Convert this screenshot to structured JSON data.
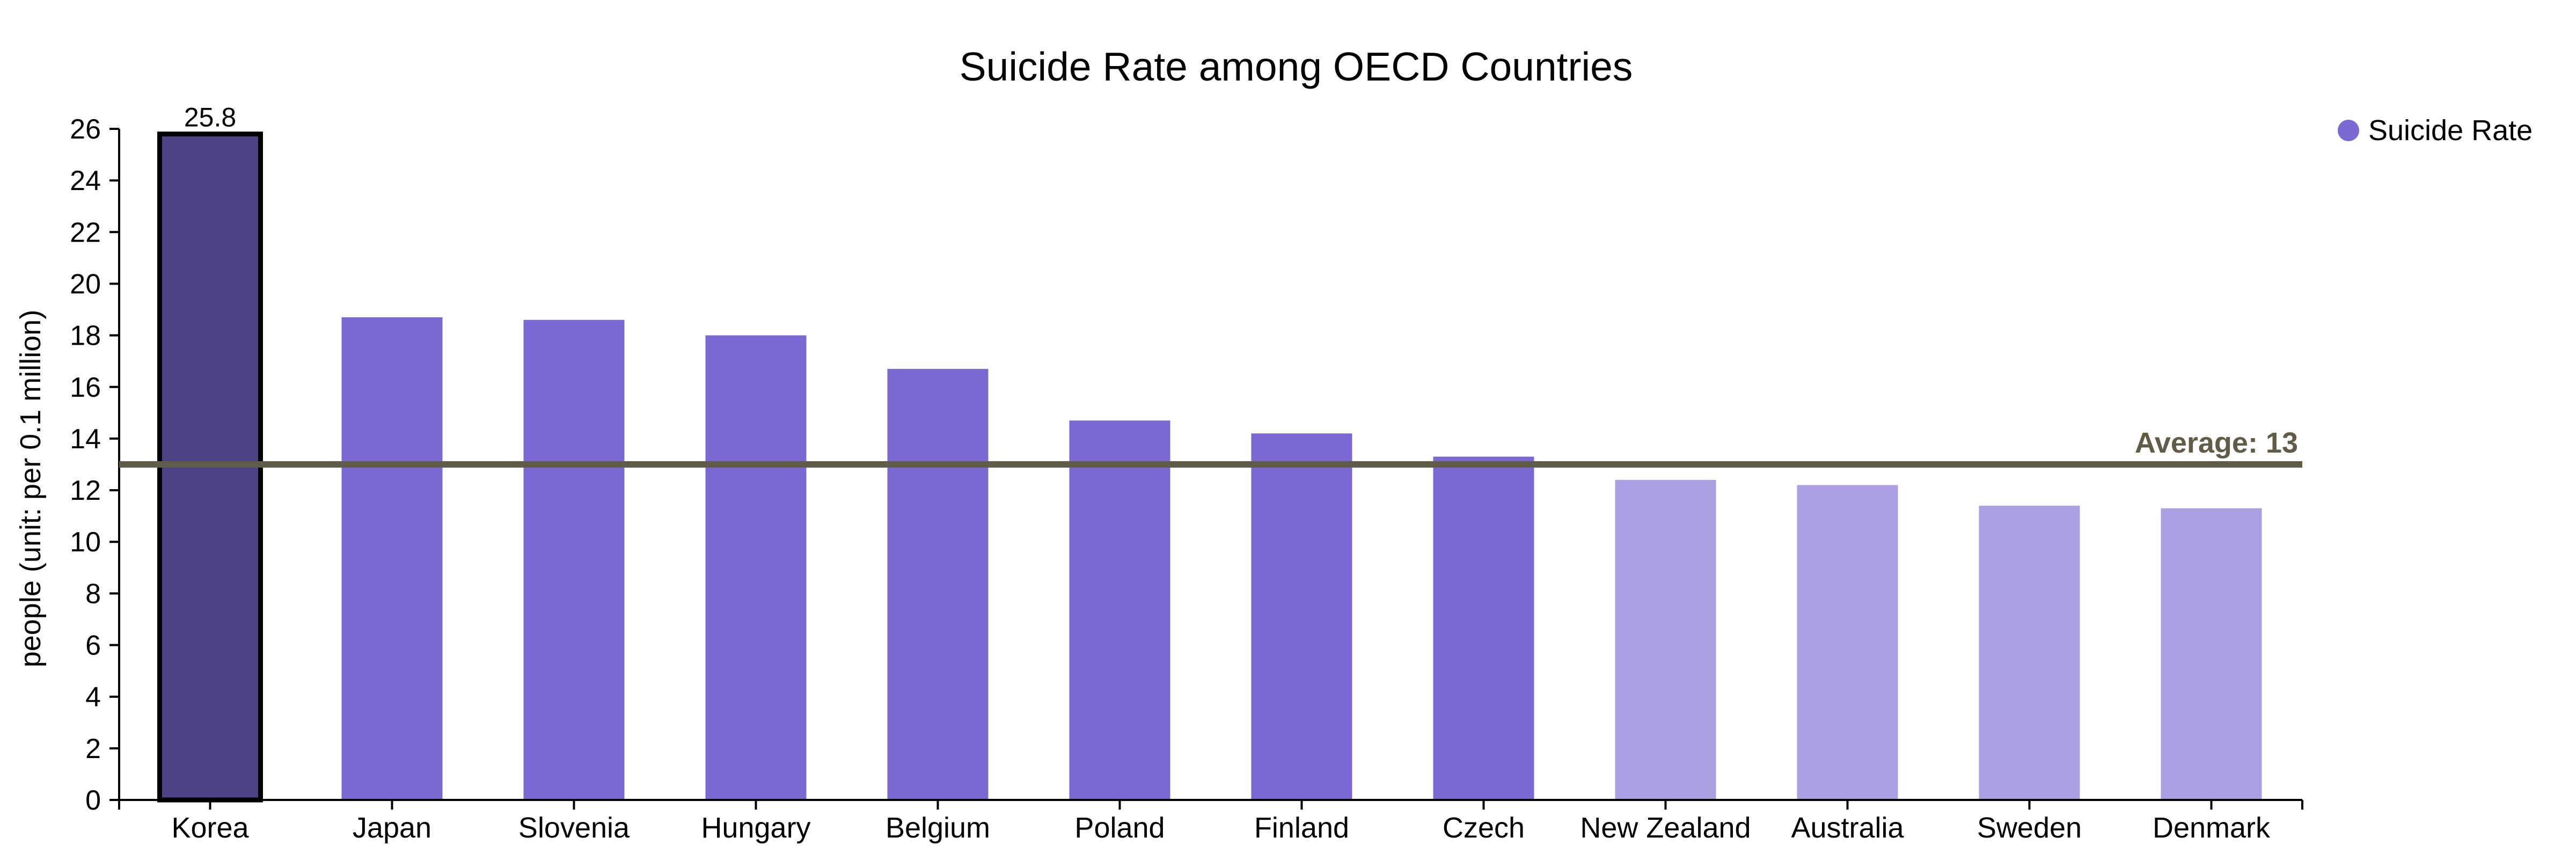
{
  "chart_data": {
    "type": "bar",
    "title": "Suicide Rate among OECD Countries",
    "xlabel": "",
    "ylabel": "people (unit: per 0.1 million)",
    "ylim": [
      0,
      26
    ],
    "yticks": [
      0,
      2,
      4,
      6,
      8,
      10,
      12,
      14,
      16,
      18,
      20,
      22,
      24,
      26
    ],
    "grid": false,
    "legend": {
      "position": "top-right",
      "entries": [
        {
          "label": "Suicide Rate",
          "color": "#7b68d3"
        }
      ]
    },
    "categories": [
      "Korea",
      "Japan",
      "Slovenia",
      "Hungary",
      "Belgium",
      "Poland",
      "Finland",
      "Czech",
      "New Zealand",
      "Australia",
      "Sweden",
      "Denmark"
    ],
    "series": [
      {
        "name": "Suicide Rate",
        "values": [
          25.8,
          18.7,
          18.6,
          18.0,
          16.7,
          14.7,
          14.2,
          13.3,
          12.4,
          12.2,
          11.4,
          11.3
        ]
      }
    ],
    "bar_colors": [
      "#4f4387",
      "#7b68d3",
      "#7b68d3",
      "#7b68d3",
      "#7b68d3",
      "#7b68d3",
      "#7b68d3",
      "#7b68d3",
      "#ad9fe3",
      "#ad9fe3",
      "#ad9fe3",
      "#ad9fe3"
    ],
    "highlight": {
      "category": "Korea",
      "value_label": "25.8",
      "outline_color": "#000000"
    },
    "reference_line": {
      "value": 13,
      "label": "Average: 13",
      "color": "#615c47"
    },
    "axis_color": "#000000"
  }
}
